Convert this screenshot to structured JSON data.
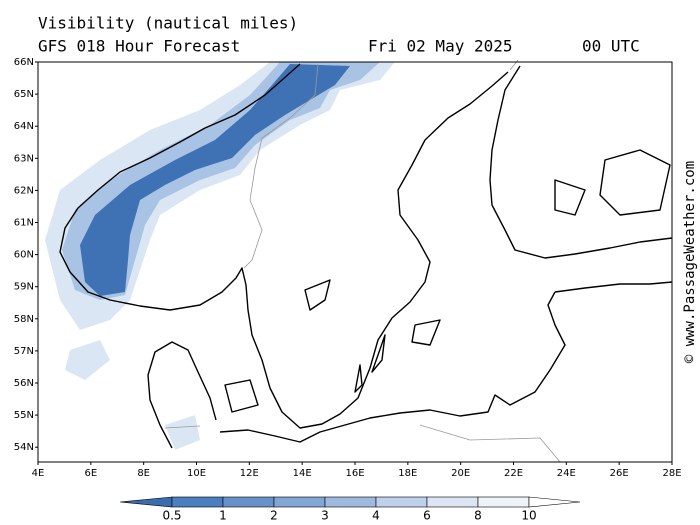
{
  "header": {
    "title": "Visibility (nautical miles)",
    "model": "GFS 018 Hour Forecast",
    "date": "Fri 02 May 2025",
    "time": "00 UTC"
  },
  "map": {
    "lat_labels": [
      "66N",
      "65N",
      "64N",
      "63N",
      "62N",
      "61N",
      "60N",
      "59N",
      "58N",
      "57N",
      "56N",
      "55N",
      "54N"
    ],
    "lon_labels": [
      "4E",
      "6E",
      "8E",
      "10E",
      "12E",
      "14E",
      "16E",
      "18E",
      "20E",
      "22E",
      "24E",
      "26E",
      "28E"
    ]
  },
  "colorbar": {
    "levels": [
      "0.5",
      "1",
      "2",
      "3",
      "4",
      "6",
      "8",
      "10"
    ]
  },
  "watermark": "© www.PassageWeather.com"
}
